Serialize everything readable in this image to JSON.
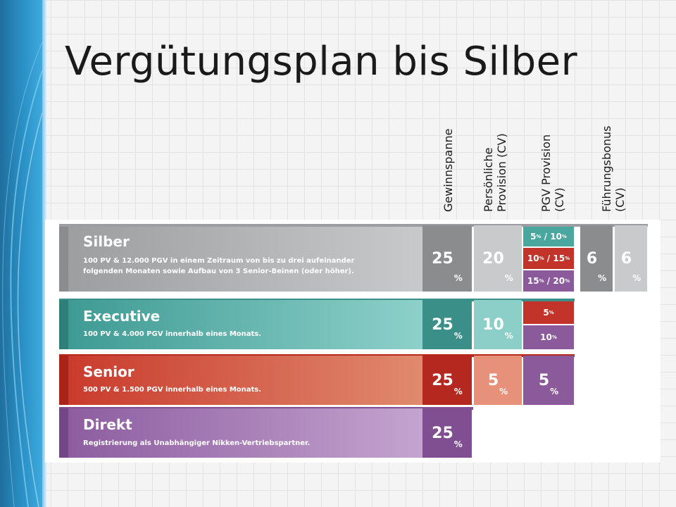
{
  "slide": {
    "title": "Vergütungsplan bis Silber",
    "columns": [
      {
        "id": "gewinnspanne",
        "line1": "Gewinnspanne",
        "line2": ""
      },
      {
        "id": "persoenliche",
        "line1": "Persönliche",
        "line2": "Provision (CV)"
      },
      {
        "id": "pgv",
        "line1": "PGV Provision",
        "line2": "(CV)"
      },
      {
        "id": "fuehrung",
        "line1": "Führungsbonus",
        "line2": "(CV)"
      }
    ]
  },
  "tiers": [
    {
      "name": "Silber",
      "desc1": "100 PV & 12.000 PGV in einem Zeitraum von bis zu drei aufeinander",
      "desc2": "folgenden Monaten sowie Aufbau von 3 Senior-Beinen (oder höher).",
      "gewinnspanne": "25",
      "persoenliche": "20",
      "pgv": [
        {
          "a": "5",
          "b": "10"
        },
        {
          "a": "10",
          "b": "15"
        },
        {
          "a": "15",
          "b": "20"
        }
      ],
      "fuehrung": [
        "6",
        "6"
      ]
    },
    {
      "name": "Executive",
      "desc1": "100 PV & 4.000 PGV innerhalb eines Monats.",
      "desc2": "",
      "gewinnspanne": "25",
      "persoenliche": "10",
      "pgv": [
        "5",
        "10"
      ]
    },
    {
      "name": "Senior",
      "desc1": "500 PV & 1.500 PGV innerhalb eines Monats.",
      "desc2": "",
      "gewinnspanne": "25",
      "persoenliche": "5",
      "pgv": [
        "5"
      ]
    },
    {
      "name": "Direkt",
      "desc1": "Registrierung als Unabhängiger Nikken-Vertriebspartner.",
      "desc2": "",
      "gewinnspanne": "25"
    }
  ],
  "units": {
    "percent": "%",
    "separator": "/"
  },
  "colors": {
    "silber": "#a7a8aa",
    "silber_dark": "#8b8c8e",
    "executive": "#4aa7a0",
    "executive_dark": "#3a8f89",
    "executive_light": "#8ccfc9",
    "senior": "#cf4a3a",
    "senior_dark": "#b5281f",
    "senior_light": "#e7907a",
    "direkt": "#9a6aa8",
    "direkt_dark": "#7f4f91"
  }
}
